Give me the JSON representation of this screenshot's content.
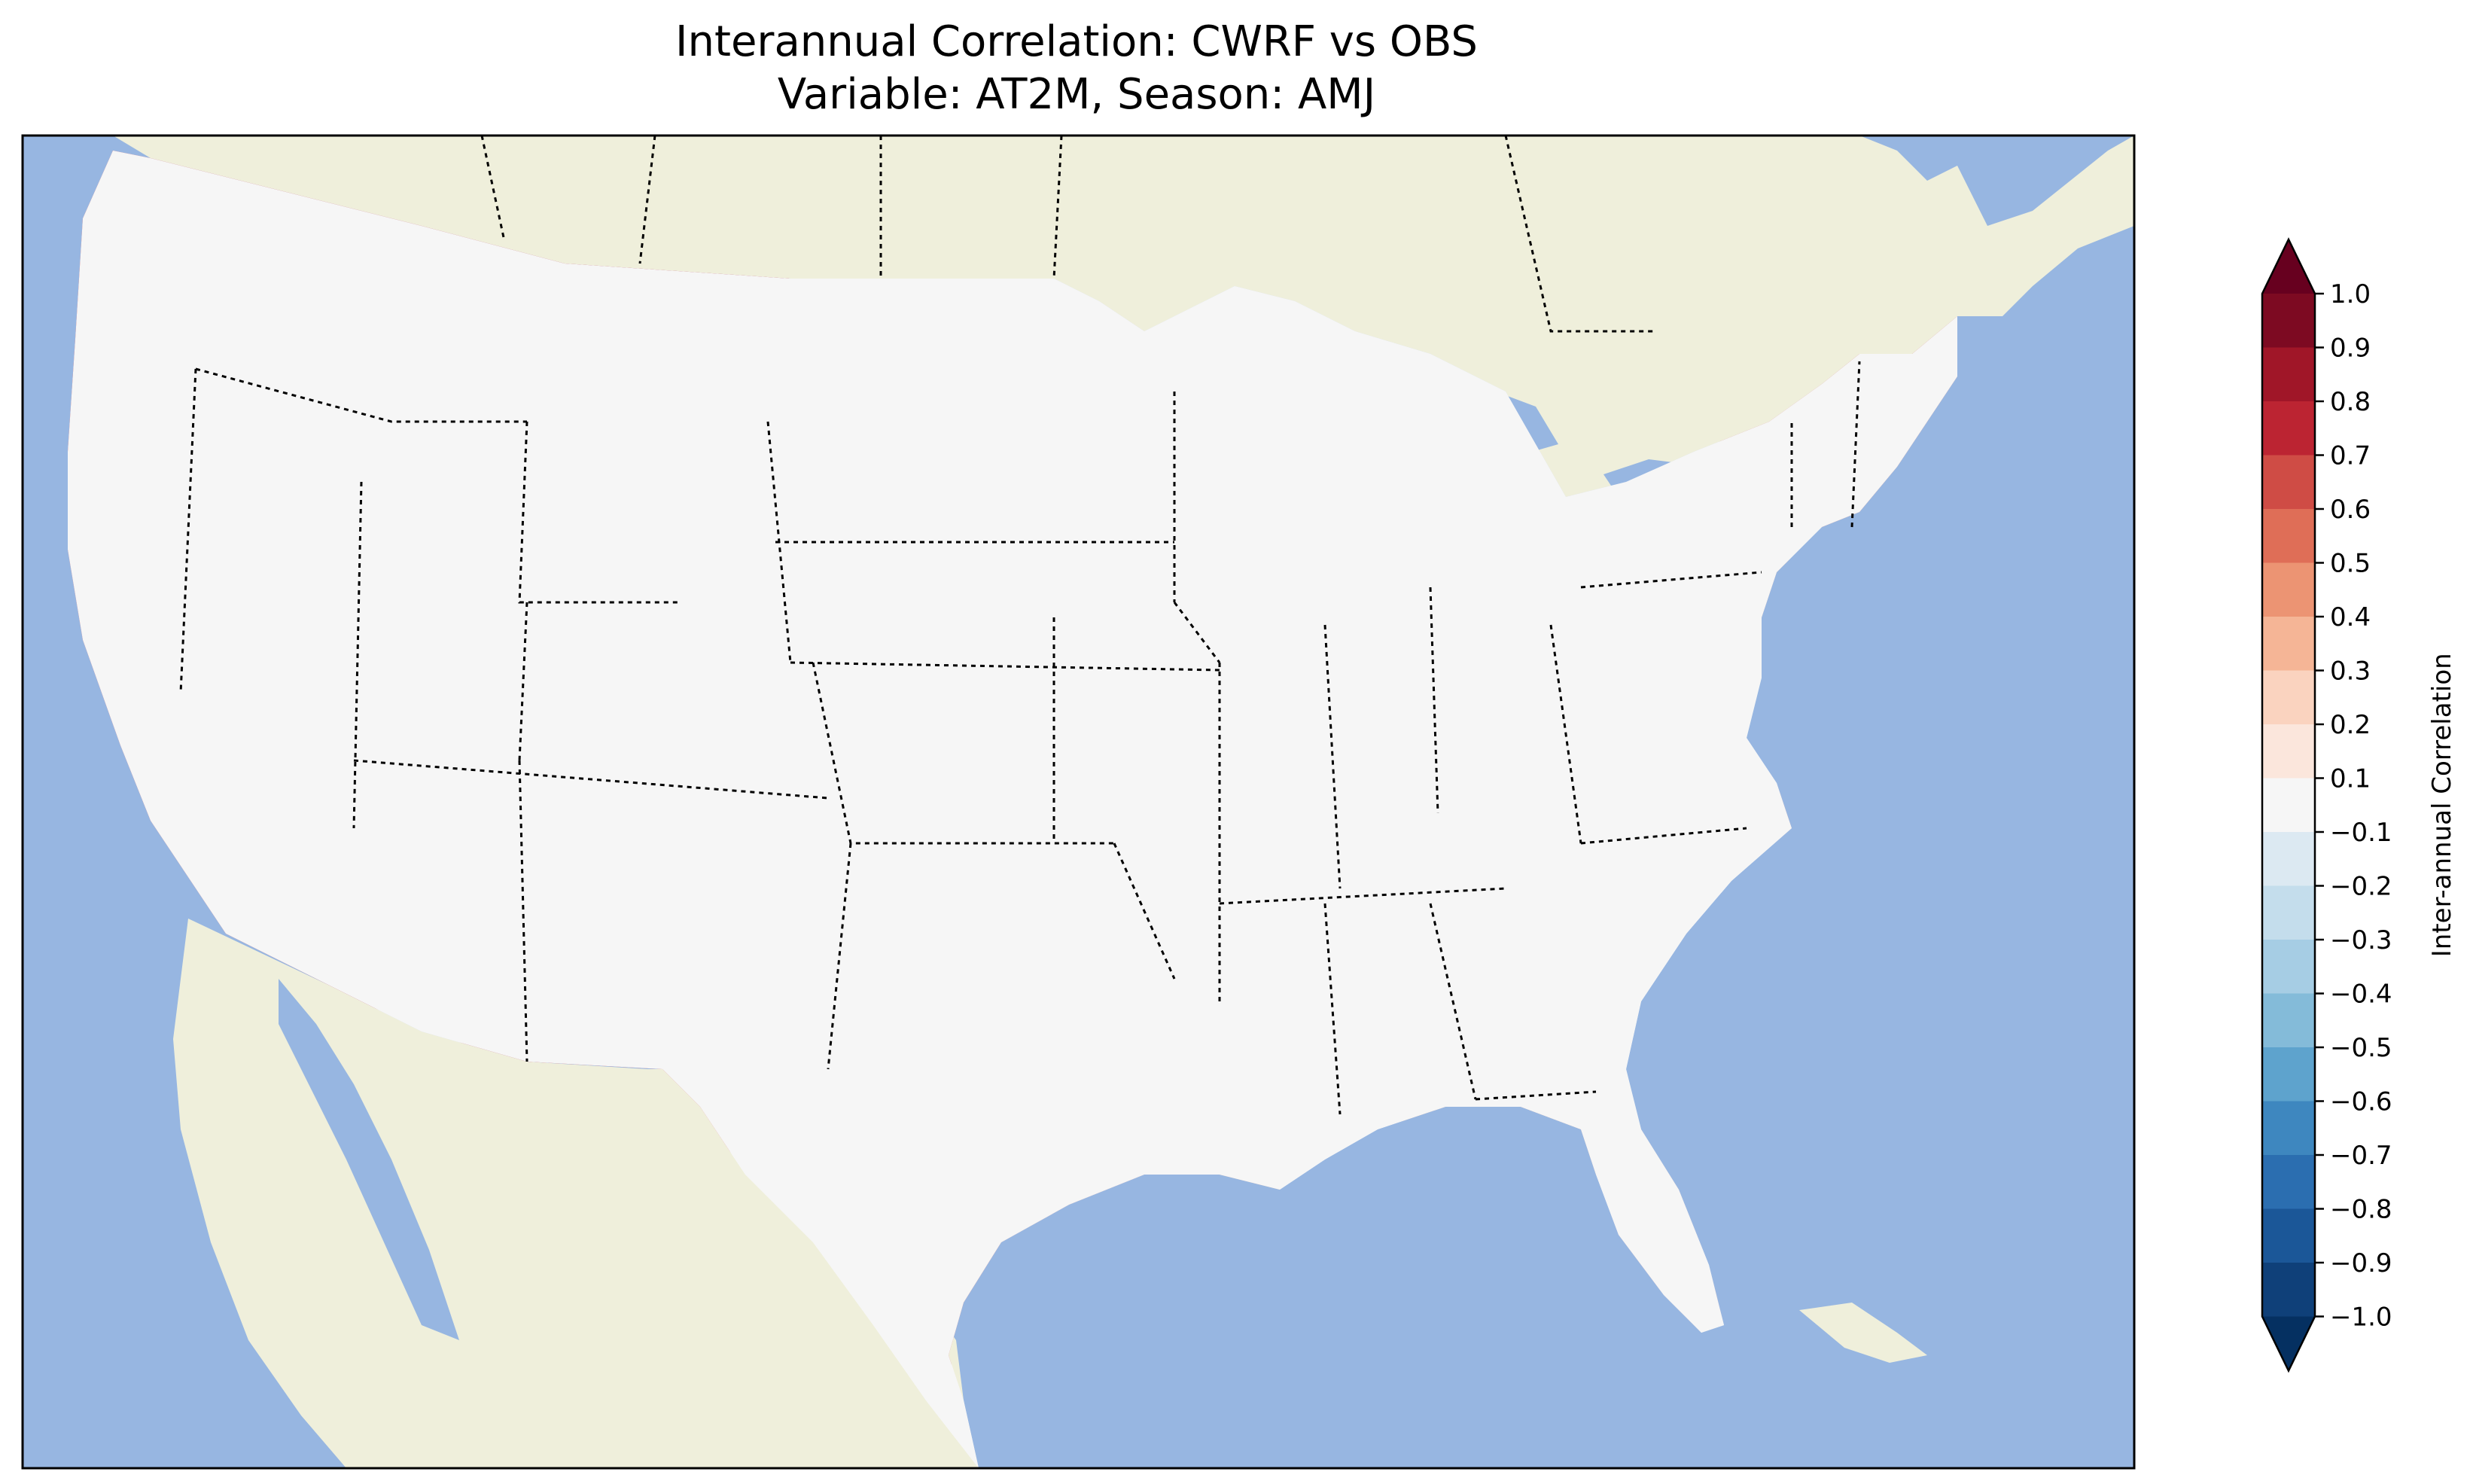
{
  "title": {
    "line1": "Interannual Correlation: CWRF vs OBS",
    "line2": "Variable: AT2M, Season: AMJ"
  },
  "colorbar": {
    "label": "Inter-annual Correlation",
    "ticks": [
      "1.0",
      "0.9",
      "0.8",
      "0.7",
      "0.6",
      "0.5",
      "0.4",
      "0.3",
      "0.2",
      "0.1",
      "−0.1",
      "−0.2",
      "−0.3",
      "−0.4",
      "−0.5",
      "−0.6",
      "−0.7",
      "−0.8",
      "−0.9",
      "−1.0"
    ],
    "colors_top_to_bottom": [
      "#7d0a22",
      "#a01628",
      "#bc2432",
      "#cf4c45",
      "#df6e57",
      "#ec9473",
      "#f5b596",
      "#fad3bf",
      "#fbe6dc",
      "#f6f6f6",
      "#dce9f2",
      "#c4ddec",
      "#a6cde4",
      "#84bbd9",
      "#5ea3cd",
      "#3e87bf",
      "#2b6eb0",
      "#1b5798",
      "#0f4079"
    ],
    "extend_top_color": "#67001f",
    "extend_bottom_color": "#053061"
  },
  "map": {
    "ocean_color": "#97b6e1",
    "land_color": "#efefdb",
    "projection": "Lambert conformal, contiguous United States",
    "fill_type": "filled contours of correlation"
  }
}
